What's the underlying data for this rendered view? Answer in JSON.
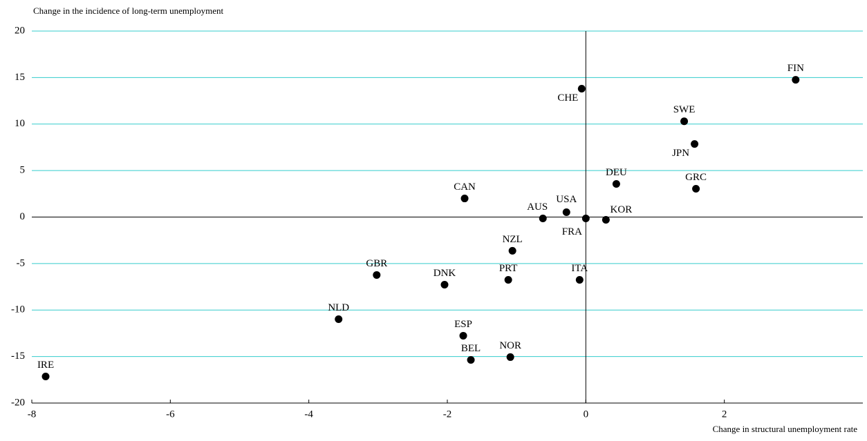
{
  "chart_data": {
    "type": "scatter",
    "y_axis_label": "Change in the incidence of long-term unemployment",
    "x_axis_label": "Change in structural unemployment rate",
    "labels": [
      "FIN",
      "CHE",
      "SWE",
      "JPN",
      "DEU",
      "GRC",
      "CAN",
      "USA",
      "AUS",
      "FRA",
      "KOR",
      "NZL",
      "GBR",
      "DNK",
      "PRT",
      "ITA",
      "NLD",
      "ESP",
      "BEL",
      "NOR",
      "IRE"
    ],
    "x": [
      3.03,
      -0.06,
      1.42,
      1.57,
      0.44,
      1.59,
      -1.75,
      -0.28,
      -0.62,
      0,
      0.29,
      -1.06,
      -3.02,
      -2.04,
      -1.12,
      -0.09,
      -3.57,
      -1.77,
      -1.66,
      -1.09,
      -7.8
    ],
    "values": [
      14.76,
      13.8,
      10.3,
      7.86,
      3.56,
      3.04,
      2.0,
      0.52,
      -0.15,
      -0.15,
      -0.3,
      -3.63,
      -6.23,
      -7.27,
      -6.75,
      -6.75,
      -10.98,
      -12.76,
      -15.36,
      -15.06,
      -17.14
    ],
    "color": "#000000",
    "grid_color": "#33cccc",
    "xlim": [
      -8,
      4
    ],
    "xticks": [
      -8,
      -6,
      -4,
      -2,
      0,
      2
    ],
    "ylim": [
      -20,
      20
    ],
    "yticks": [
      -20,
      -15,
      -10,
      -5,
      0,
      5,
      10,
      15,
      20
    ],
    "grid": true
  }
}
